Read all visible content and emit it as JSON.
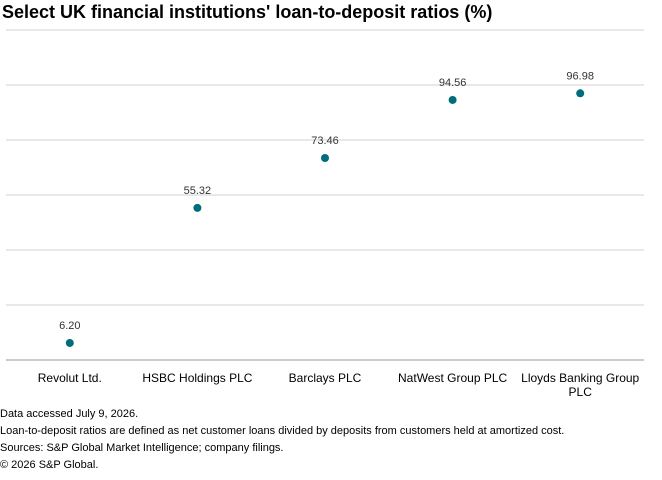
{
  "title": "Select UK financial institutions' loan-to-deposit ratios (%)",
  "chart_data": {
    "type": "scatter",
    "title": "Select UK financial institutions' loan-to-deposit ratios (%)",
    "categories": [
      "Revolut Ltd.",
      "HSBC Holdings PLC",
      "Barclays PLC",
      "NatWest Group PLC",
      "Lloyds Banking Group PLC"
    ],
    "values": [
      6.2,
      55.32,
      73.46,
      94.56,
      96.98
    ],
    "value_labels": [
      "6.20",
      "55.32",
      "73.46",
      "94.56",
      "96.98"
    ],
    "ylim": [
      0,
      120
    ],
    "grid": true,
    "xlabel": "",
    "ylabel": "",
    "colors": {
      "marker": "#006d7a",
      "grid": "#d0d0d0",
      "axis": "#999999"
    }
  },
  "footnotes": [
    "Data accessed July 9, 2026.",
    "Loan-to-deposit ratios are defined as net customer loans divided by deposits from customers held at amortized cost.",
    "Sources: S&P Global Market Intelligence; company filings.",
    "© 2026 S&P Global."
  ]
}
